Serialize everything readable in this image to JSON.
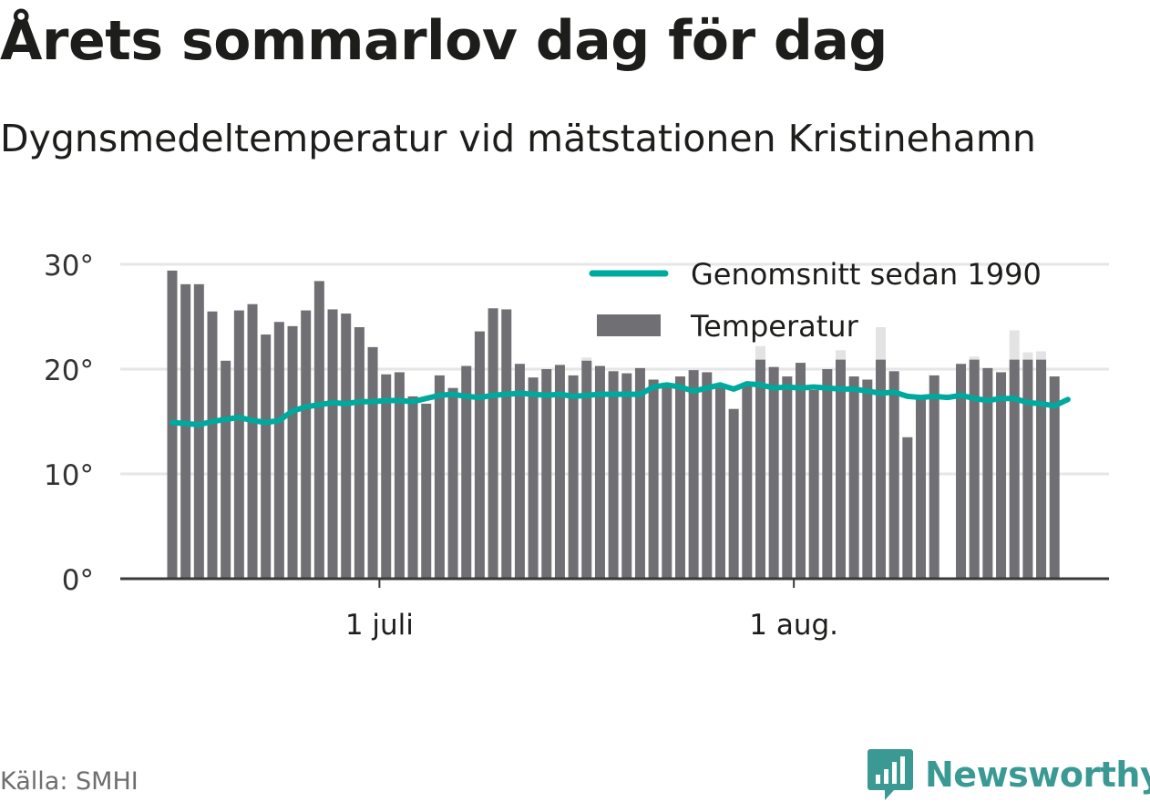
{
  "title": "Årets sommarlov dag för dag",
  "subtitle": "Dygnsmedeltemperatur vid mätstationen Kristinehamn",
  "source": "Källa: SMHI",
  "brand": "Newsworthy",
  "colors": {
    "bar": "#706f73",
    "bar_shadow": "#e3e3e3",
    "line": "#00a99d",
    "grid": "#e6e6e6",
    "axis": "#3a3a3a",
    "brand": "#3a9a93"
  },
  "chart_data": {
    "type": "bar",
    "x_axis": {
      "start_date": "2018-06-15",
      "ticks": [
        {
          "date": "2018-07-01",
          "label": "1 juli"
        },
        {
          "date": "2018-08-01",
          "label": "1 aug."
        }
      ]
    },
    "y_axis": {
      "ylim": [
        0,
        30
      ],
      "ticks": [
        {
          "value": 0,
          "label": "0°"
        },
        {
          "value": 10,
          "label": "10°"
        },
        {
          "value": 20,
          "label": "20°"
        },
        {
          "value": 30,
          "label": "30°"
        }
      ]
    },
    "grid": true,
    "legend": {
      "position": "top-right",
      "entries": [
        {
          "label": "Genomsnitt sedan 1990",
          "kind": "line"
        },
        {
          "label": "Temperatur",
          "kind": "bar"
        }
      ]
    },
    "series": [
      {
        "name": "Temperatur",
        "type": "bar",
        "values": [
          29.4,
          28.1,
          28.1,
          25.5,
          20.8,
          25.6,
          26.2,
          23.3,
          24.5,
          24.1,
          25.6,
          28.4,
          25.7,
          25.3,
          24.0,
          22.1,
          19.5,
          19.7,
          17.4,
          16.7,
          19.4,
          18.2,
          20.3,
          23.6,
          25.8,
          25.7,
          20.5,
          19.2,
          20.0,
          20.4,
          19.4,
          20.8,
          20.3,
          19.8,
          19.6,
          20.1,
          19.0,
          18.3,
          19.3,
          19.9,
          19.7,
          18.4,
          16.2,
          18.5,
          20.9,
          20.2,
          19.3,
          20.6,
          18.0,
          20.0,
          20.9,
          19.3,
          19.0,
          20.9,
          19.8,
          13.5,
          17.4,
          19.4,
          null,
          20.5,
          20.9,
          20.1,
          19.7,
          20.9,
          20.9,
          20.9,
          19.3
        ]
      },
      {
        "name": "Genomsnitt sedan 1990",
        "type": "line",
        "values": [
          14.9,
          14.8,
          14.7,
          15.0,
          15.2,
          15.4,
          15.1,
          14.9,
          15.1,
          16.0,
          16.4,
          16.6,
          16.8,
          16.7,
          16.9,
          16.9,
          17.0,
          17.0,
          16.9,
          17.2,
          17.5,
          17.6,
          17.4,
          17.3,
          17.5,
          17.6,
          17.7,
          17.6,
          17.5,
          17.6,
          17.4,
          17.5,
          17.6,
          17.6,
          17.6,
          17.6,
          18.3,
          18.5,
          18.3,
          17.9,
          18.2,
          18.5,
          18.1,
          18.6,
          18.5,
          18.2,
          18.3,
          18.2,
          18.3,
          18.2,
          18.1,
          18.1,
          17.9,
          17.7,
          17.8,
          17.4,
          17.3,
          17.4,
          17.3,
          17.5,
          17.2,
          17.0,
          17.2,
          17.2,
          16.8,
          16.7,
          16.5,
          17.1
        ]
      },
      {
        "name": "",
        "type": "bar-shadow",
        "values": [
          null,
          null,
          null,
          null,
          null,
          null,
          null,
          null,
          null,
          null,
          null,
          null,
          null,
          null,
          null,
          null,
          null,
          null,
          null,
          null,
          null,
          null,
          null,
          null,
          null,
          null,
          null,
          null,
          null,
          null,
          null,
          21.1,
          null,
          null,
          null,
          null,
          null,
          null,
          null,
          null,
          null,
          null,
          null,
          null,
          22.2,
          null,
          null,
          null,
          null,
          null,
          21.8,
          null,
          null,
          24.0,
          null,
          null,
          null,
          null,
          null,
          null,
          21.2,
          null,
          null,
          23.7,
          21.6,
          21.7,
          null
        ]
      }
    ]
  }
}
